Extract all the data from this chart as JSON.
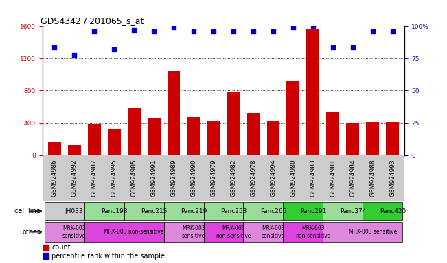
{
  "title": "GDS4342 / 201065_s_at",
  "samples": [
    "GSM924986",
    "GSM924992",
    "GSM924987",
    "GSM924995",
    "GSM924985",
    "GSM924991",
    "GSM924989",
    "GSM924990",
    "GSM924979",
    "GSM924982",
    "GSM924978",
    "GSM924994",
    "GSM924980",
    "GSM924983",
    "GSM924981",
    "GSM924984",
    "GSM924988",
    "GSM924993"
  ],
  "counts": [
    170,
    120,
    390,
    320,
    580,
    460,
    1050,
    470,
    430,
    780,
    520,
    420,
    920,
    1570,
    530,
    400,
    410,
    415
  ],
  "percentiles": [
    84,
    78,
    96,
    82,
    97,
    96,
    99,
    96,
    96,
    96,
    96,
    96,
    99,
    100,
    84,
    84,
    96,
    96
  ],
  "bar_color": "#cc0000",
  "dot_color": "#0000cc",
  "ylim_left": [
    0,
    1600
  ],
  "ylim_right": [
    0,
    100
  ],
  "yticks_left": [
    0,
    400,
    800,
    1200,
    1600
  ],
  "yticks_right": [
    0,
    25,
    50,
    75,
    100
  ],
  "cell_lines": [
    {
      "label": "JH033",
      "start": 0,
      "end": 2,
      "color": "#cccccc"
    },
    {
      "label": "Panc198",
      "start": 2,
      "end": 4,
      "color": "#99dd99"
    },
    {
      "label": "Panc215",
      "start": 4,
      "end": 6,
      "color": "#99dd99"
    },
    {
      "label": "Panc219",
      "start": 6,
      "end": 8,
      "color": "#99dd99"
    },
    {
      "label": "Panc253",
      "start": 8,
      "end": 10,
      "color": "#99dd99"
    },
    {
      "label": "Panc265",
      "start": 10,
      "end": 12,
      "color": "#99dd99"
    },
    {
      "label": "Panc291",
      "start": 12,
      "end": 14,
      "color": "#33cc33"
    },
    {
      "label": "Panc374",
      "start": 14,
      "end": 16,
      "color": "#99dd99"
    },
    {
      "label": "Panc420",
      "start": 16,
      "end": 18,
      "color": "#33cc33"
    }
  ],
  "other_regions": [
    {
      "label": "MRK-003\nsensitive",
      "start": 0,
      "end": 2,
      "color": "#dd88dd"
    },
    {
      "label": "MRK-003 non-sensitive",
      "start": 2,
      "end": 6,
      "color": "#dd44dd"
    },
    {
      "label": "MRK-003\nsensitive",
      "start": 6,
      "end": 8,
      "color": "#dd88dd"
    },
    {
      "label": "MRK-003\nnon-sensitive",
      "start": 8,
      "end": 10,
      "color": "#dd44dd"
    },
    {
      "label": "MRK-003\nsensitive",
      "start": 10,
      "end": 12,
      "color": "#dd88dd"
    },
    {
      "label": "MRK-003\nnon-sensitive",
      "start": 12,
      "end": 14,
      "color": "#dd44dd"
    },
    {
      "label": "MRK-003 sensitive",
      "start": 14,
      "end": 18,
      "color": "#dd88dd"
    }
  ],
  "legend_items": [
    {
      "label": "count",
      "color": "#cc0000"
    },
    {
      "label": "percentile rank within the sample",
      "color": "#0000cc"
    }
  ],
  "label_color_left": "#cc0000",
  "label_color_right": "#0000cc",
  "tick_label_fontsize": 6.5,
  "title_fontsize": 9,
  "annotation_fontsize": 7,
  "sample_bg_color": "#cccccc"
}
